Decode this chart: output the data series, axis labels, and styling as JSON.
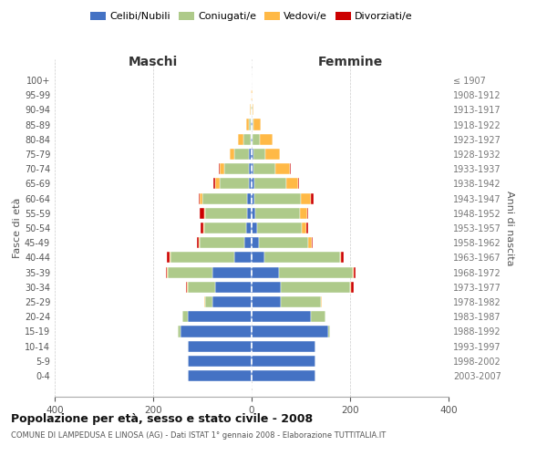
{
  "age_groups": [
    "0-4",
    "5-9",
    "10-14",
    "15-19",
    "20-24",
    "25-29",
    "30-34",
    "35-39",
    "40-44",
    "45-49",
    "50-54",
    "55-59",
    "60-64",
    "65-69",
    "70-74",
    "75-79",
    "80-84",
    "85-89",
    "90-94",
    "95-99",
    "100+"
  ],
  "birth_years": [
    "2003-2007",
    "1998-2002",
    "1993-1997",
    "1988-1992",
    "1983-1987",
    "1978-1982",
    "1973-1977",
    "1968-1972",
    "1963-1967",
    "1958-1962",
    "1953-1957",
    "1948-1952",
    "1943-1947",
    "1938-1942",
    "1933-1937",
    "1928-1932",
    "1923-1927",
    "1918-1922",
    "1913-1917",
    "1908-1912",
    "≤ 1907"
  ],
  "colors": {
    "celibe": "#4472C4",
    "coniugato": "#AECA8A",
    "vedovo": "#FFB946",
    "divorziato": "#CC0000"
  },
  "maschi": {
    "celibe": [
      130,
      130,
      130,
      145,
      130,
      80,
      75,
      80,
      35,
      15,
      12,
      10,
      10,
      5,
      5,
      5,
      2,
      1,
      0,
      0,
      0
    ],
    "coniugato": [
      0,
      0,
      0,
      5,
      10,
      15,
      55,
      90,
      130,
      90,
      85,
      85,
      90,
      60,
      50,
      30,
      15,
      5,
      1,
      0,
      0
    ],
    "vedovo": [
      0,
      0,
      0,
      0,
      0,
      2,
      2,
      2,
      2,
      2,
      2,
      2,
      5,
      10,
      10,
      10,
      10,
      5,
      2,
      1,
      0
    ],
    "divorziato": [
      0,
      0,
      0,
      0,
      0,
      0,
      2,
      2,
      5,
      5,
      5,
      8,
      3,
      2,
      2,
      0,
      0,
      0,
      0,
      0,
      0
    ]
  },
  "femmine": {
    "celibe": [
      130,
      130,
      130,
      155,
      120,
      60,
      60,
      55,
      25,
      15,
      12,
      8,
      5,
      5,
      3,
      3,
      2,
      1,
      0,
      0,
      0
    ],
    "coniugato": [
      0,
      0,
      0,
      5,
      30,
      80,
      140,
      150,
      155,
      100,
      90,
      90,
      95,
      65,
      45,
      25,
      15,
      3,
      1,
      0,
      0
    ],
    "vedovo": [
      0,
      0,
      0,
      0,
      0,
      2,
      2,
      2,
      2,
      8,
      10,
      15,
      20,
      25,
      30,
      30,
      25,
      15,
      2,
      1,
      0
    ],
    "divorziato": [
      0,
      0,
      0,
      0,
      0,
      0,
      5,
      5,
      5,
      2,
      2,
      2,
      5,
      2,
      2,
      0,
      0,
      0,
      0,
      0,
      0
    ]
  },
  "title": "Popolazione per età, sesso e stato civile - 2008",
  "subtitle": "COMUNE DI LAMPEDUSA E LINOSA (AG) - Dati ISTAT 1° gennaio 2008 - Elaborazione TUTTITALIA.IT",
  "xlabel_left": "Maschi",
  "xlabel_right": "Femmine",
  "ylabel_left": "Fasce di età",
  "ylabel_right": "Anni di nascita",
  "xlim": 400,
  "legend_labels": [
    "Celibi/Nubili",
    "Coniugati/e",
    "Vedovi/e",
    "Divorziati/e"
  ],
  "background_color": "#FFFFFF",
  "grid_color": "#CCCCCC"
}
